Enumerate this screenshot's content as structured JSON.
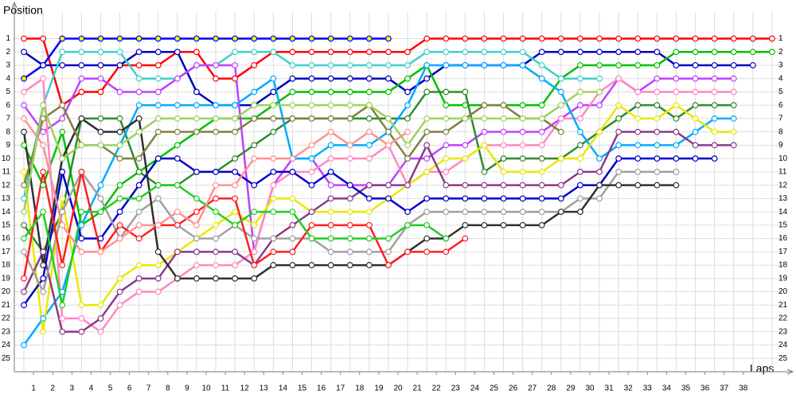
{
  "chart_data": {
    "type": "line",
    "y_axis_title": "Position",
    "x_axis_title": "Laps",
    "x": [
      0,
      1,
      2,
      3,
      4,
      5,
      6,
      7,
      8,
      9,
      10,
      11,
      12,
      13,
      14,
      15,
      16,
      17,
      18,
      19,
      20,
      21,
      22,
      23,
      24,
      25,
      26,
      27,
      28,
      29,
      30,
      31,
      32,
      33,
      34,
      35,
      36,
      37,
      38,
      39
    ],
    "xlim": [
      -0.5,
      39.5
    ],
    "xticks": [
      {
        "value": 0.5,
        "label": "1"
      },
      {
        "value": 1.5,
        "label": "2"
      },
      {
        "value": 2.5,
        "label": "3"
      },
      {
        "value": 3.5,
        "label": "4"
      },
      {
        "value": 4.5,
        "label": "5"
      },
      {
        "value": 5.5,
        "label": "6"
      },
      {
        "value": 6.5,
        "label": "7"
      },
      {
        "value": 7.5,
        "label": "8"
      },
      {
        "value": 8.5,
        "label": "9"
      },
      {
        "value": 9.5,
        "label": "10"
      },
      {
        "value": 10.5,
        "label": "11"
      },
      {
        "value": 11.5,
        "label": "12"
      },
      {
        "value": 12.5,
        "label": "13"
      },
      {
        "value": 13.5,
        "label": "14"
      },
      {
        "value": 14.5,
        "label": "15"
      },
      {
        "value": 15.5,
        "label": "16"
      },
      {
        "value": 16.5,
        "label": "17"
      },
      {
        "value": 17.5,
        "label": "18"
      },
      {
        "value": 18.5,
        "label": "19"
      },
      {
        "value": 19.5,
        "label": "20"
      },
      {
        "value": 20.5,
        "label": "21"
      },
      {
        "value": 21.5,
        "label": "22"
      },
      {
        "value": 22.5,
        "label": "23"
      },
      {
        "value": 23.5,
        "label": "24"
      },
      {
        "value": 24.5,
        "label": "25"
      },
      {
        "value": 25.5,
        "label": "26"
      },
      {
        "value": 26.5,
        "label": "27"
      },
      {
        "value": 27.5,
        "label": "28"
      },
      {
        "value": 28.5,
        "label": "29"
      },
      {
        "value": 29.5,
        "label": "30"
      },
      {
        "value": 30.5,
        "label": "31"
      },
      {
        "value": 31.5,
        "label": "32"
      },
      {
        "value": 32.5,
        "label": "33"
      },
      {
        "value": 33.5,
        "label": "34"
      },
      {
        "value": 34.5,
        "label": "35"
      },
      {
        "value": 35.5,
        "label": "36"
      },
      {
        "value": 36.5,
        "label": "37"
      },
      {
        "value": 37.5,
        "label": "38"
      }
    ],
    "ylim": [
      26,
      -1
    ],
    "yticks": [
      1,
      2,
      3,
      4,
      5,
      6,
      7,
      8,
      9,
      10,
      11,
      12,
      13,
      14,
      15,
      16,
      17,
      18,
      19,
      20,
      21,
      22,
      23,
      24,
      25
    ],
    "grid": true,
    "series": [
      {
        "color": "#ff0000",
        "values": [
          1,
          1,
          6,
          5,
          5,
          3,
          3,
          3,
          2,
          2,
          4,
          4,
          3,
          2,
          2,
          2,
          2,
          2,
          2,
          2,
          2,
          1,
          1,
          1,
          1,
          1,
          1,
          1,
          1,
          1,
          1,
          1,
          1,
          1,
          1,
          1,
          1,
          1,
          1,
          1
        ]
      },
      {
        "color": "#0000ff",
        "marker_fill": "#ffff00",
        "values": [
          4,
          3,
          1,
          1,
          1,
          1,
          1,
          1,
          1,
          1,
          1,
          1,
          1,
          1,
          1,
          1,
          1,
          1,
          1,
          1,
          null,
          null,
          null,
          null,
          null,
          null,
          null,
          null,
          null,
          null,
          null,
          null,
          null,
          null,
          null,
          null,
          null,
          null,
          null,
          null
        ]
      },
      {
        "color": "#0000c0",
        "values": [
          2,
          3,
          3,
          3,
          3,
          3,
          2,
          2,
          2,
          5,
          6,
          6,
          6,
          5,
          4,
          4,
          4,
          4,
          4,
          4,
          5,
          4,
          3,
          3,
          3,
          3,
          3,
          2,
          2,
          2,
          2,
          2,
          2,
          2,
          3,
          3,
          3,
          3,
          3,
          null
        ]
      },
      {
        "color": "#00c000",
        "values": [
          9,
          12,
          8,
          15,
          14,
          12,
          11,
          10,
          9,
          8,
          7,
          7,
          7,
          6,
          5,
          5,
          5,
          5,
          5,
          5,
          4,
          3,
          6,
          6,
          6,
          6,
          6,
          6,
          4,
          3,
          3,
          3,
          3,
          3,
          2,
          2,
          2,
          2,
          2,
          2
        ]
      },
      {
        "color": "#40d0c8",
        "values": [
          13,
          6,
          2,
          2,
          2,
          2,
          4,
          4,
          4,
          3,
          3,
          2,
          2,
          2,
          3,
          3,
          3,
          3,
          3,
          3,
          3,
          2,
          2,
          2,
          2,
          2,
          2,
          3,
          4,
          4,
          4,
          null,
          null,
          null,
          null,
          null,
          null,
          null,
          null,
          null
        ]
      },
      {
        "color": "#c040ff",
        "values": [
          6,
          8,
          7,
          4,
          4,
          5,
          5,
          5,
          4,
          3,
          3,
          3,
          17,
          12,
          10,
          10,
          12,
          12,
          12,
          12,
          10,
          10,
          9,
          9,
          8,
          8,
          8,
          8,
          7,
          6,
          6,
          4,
          5,
          4,
          4,
          4,
          4,
          4,
          null,
          null
        ]
      },
      {
        "color": "#ff88c0",
        "values": [
          5,
          4,
          22,
          22,
          23,
          21,
          20,
          20,
          19,
          18,
          18,
          18,
          17,
          12,
          11,
          11,
          10,
          10,
          10,
          9,
          12,
          11,
          11,
          10,
          9,
          9,
          9,
          9,
          7,
          7,
          5,
          4,
          5,
          5,
          5,
          5,
          5,
          5,
          null,
          null
        ]
      },
      {
        "color": "#2e8b2e",
        "values": [
          15,
          17,
          14,
          7,
          7,
          7,
          11,
          12,
          12,
          11,
          11,
          10,
          9,
          8,
          7,
          7,
          7,
          7,
          7,
          7,
          7,
          5,
          5,
          5,
          11,
          10,
          10,
          10,
          10,
          9,
          8,
          7,
          6,
          6,
          7,
          6,
          6,
          6,
          null,
          null
        ]
      },
      {
        "color": "#00aaff",
        "values": [
          24,
          22,
          20,
          15,
          12,
          9,
          6,
          6,
          6,
          6,
          6,
          6,
          5,
          4,
          10,
          10,
          9,
          9,
          9,
          8,
          6,
          3,
          3,
          3,
          3,
          3,
          3,
          4,
          5,
          8,
          10,
          9,
          9,
          9,
          9,
          8,
          7,
          7,
          null,
          null
        ]
      },
      {
        "color": "#e8e800",
        "values": [
          11,
          23,
          13,
          21,
          21,
          19,
          18,
          18,
          17,
          16,
          15,
          14,
          15,
          13,
          13,
          14,
          14,
          14,
          14,
          13,
          12,
          11,
          10,
          10,
          9,
          11,
          11,
          11,
          10,
          10,
          8,
          6,
          7,
          7,
          6,
          7,
          8,
          8,
          null,
          null
        ]
      },
      {
        "color": "#8b3a8b",
        "values": [
          20,
          17,
          23,
          23,
          22,
          20,
          19,
          19,
          17,
          17,
          17,
          17,
          18,
          16,
          15,
          14,
          13,
          13,
          12,
          12,
          12,
          9,
          12,
          12,
          12,
          12,
          12,
          12,
          12,
          11,
          11,
          8,
          8,
          8,
          8,
          9,
          9,
          9,
          null,
          null
        ]
      },
      {
        "color": "#0000cc",
        "values": [
          21,
          19,
          11,
          16,
          16,
          14,
          12,
          10,
          10,
          11,
          11,
          11,
          12,
          11,
          11,
          12,
          11,
          12,
          13,
          13,
          14,
          13,
          13,
          13,
          13,
          13,
          13,
          13,
          13,
          12,
          12,
          10,
          10,
          10,
          10,
          10,
          10,
          null,
          null,
          null
        ]
      },
      {
        "color": "#a0a0a0",
        "values": [
          17,
          20,
          14,
          11,
          13,
          16,
          14,
          13,
          15,
          16,
          16,
          15,
          16,
          16,
          16,
          16,
          17,
          17,
          17,
          17,
          15,
          14,
          14,
          14,
          14,
          14,
          14,
          14,
          14,
          13,
          13,
          11,
          11,
          11,
          11,
          null,
          null,
          null,
          null,
          null
        ]
      },
      {
        "color": "#303030",
        "values": [
          8,
          18,
          10,
          7,
          8,
          8,
          7,
          17,
          19,
          19,
          19,
          19,
          19,
          18,
          18,
          18,
          18,
          18,
          18,
          18,
          17,
          16,
          16,
          15,
          15,
          15,
          15,
          15,
          14,
          14,
          12,
          12,
          12,
          12,
          12,
          null,
          null,
          null,
          null,
          null
        ]
      },
      {
        "color": "#ff2020",
        "values": [
          19,
          11,
          18,
          11,
          17,
          15,
          16,
          15,
          15,
          14,
          13,
          13,
          18,
          17,
          17,
          15,
          15,
          15,
          15,
          18,
          17,
          17,
          17,
          16,
          null,
          null,
          null,
          null,
          null,
          null,
          null,
          null,
          null,
          null,
          null,
          null,
          null,
          null,
          null,
          null
        ]
      },
      {
        "color": "#22cc22",
        "values": [
          16,
          14,
          21,
          14,
          14,
          13,
          13,
          12,
          12,
          13,
          14,
          15,
          14,
          14,
          14,
          16,
          16,
          16,
          16,
          16,
          15,
          15,
          16,
          null,
          null,
          null,
          null,
          null,
          null,
          null,
          null,
          null,
          null,
          null,
          null,
          null,
          null,
          null,
          null,
          null
        ]
      },
      {
        "color": "#808040",
        "values": [
          12,
          7,
          6,
          9,
          9,
          10,
          10,
          8,
          8,
          8,
          8,
          8,
          7,
          7,
          7,
          7,
          7,
          7,
          6,
          8,
          10,
          8,
          8,
          7,
          6,
          6,
          7,
          7,
          8,
          null,
          null,
          null,
          null,
          null,
          null,
          null,
          null,
          null,
          null,
          null
        ]
      },
      {
        "color": "#a0d060",
        "values": [
          14,
          6,
          10,
          9,
          9,
          9,
          8,
          7,
          7,
          7,
          7,
          7,
          6,
          6,
          6,
          6,
          6,
          6,
          6,
          7,
          9,
          7,
          7,
          7,
          7,
          7,
          7,
          7,
          6,
          5,
          5,
          null,
          null,
          null,
          null,
          null,
          null,
          null,
          null,
          null
        ]
      },
      {
        "color": "#ff9090",
        "values": [
          7,
          9,
          15,
          17,
          17,
          16,
          15,
          15,
          14,
          15,
          12,
          12,
          10,
          10,
          10,
          9,
          8,
          9,
          8,
          9,
          8,
          null,
          null,
          null,
          null,
          null,
          null,
          null,
          null,
          null,
          null,
          null,
          null,
          null,
          null,
          null,
          null,
          null,
          null,
          null
        ]
      }
    ]
  }
}
